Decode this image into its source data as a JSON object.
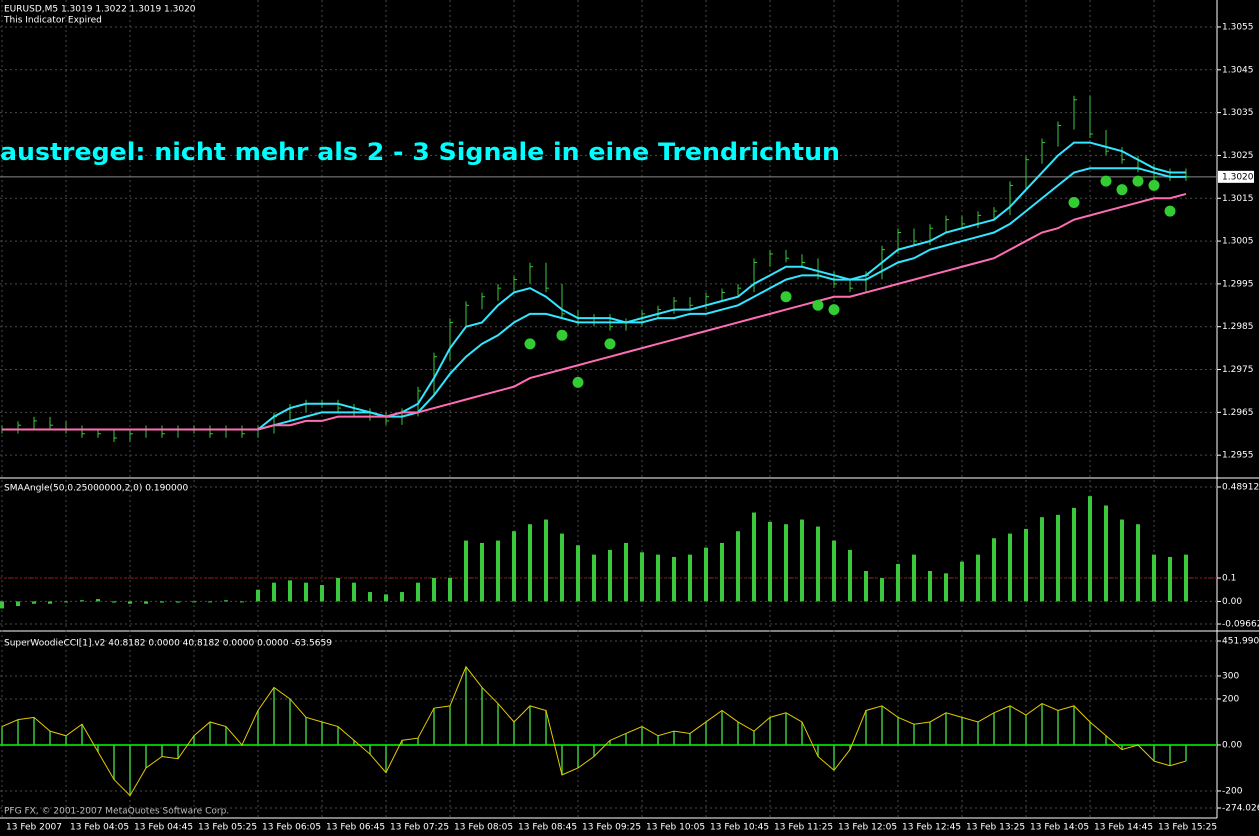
{
  "chart_data": [
    {
      "type": "price",
      "title": "EURUSD,M5  1.3019 1.3022 1.3019 1.3020",
      "subtitle": "This Indicator Expired",
      "annotation": "austregel:  nicht mehr als 2 - 3 Signale in eine Trendrichtun",
      "categories": [
        "13 Feb 2007",
        null,
        null,
        null,
        "13 Feb 04:05",
        null,
        null,
        null,
        "13 Feb 04:45",
        null,
        null,
        null,
        "13 Feb 05:25",
        null,
        null,
        null,
        "13 Feb 06:05",
        null,
        null,
        null,
        "13 Feb 06:45",
        null,
        null,
        null,
        "13 Feb 07:25",
        null,
        null,
        null,
        "13 Feb 08:05",
        null,
        null,
        null,
        "13 Feb 08:45",
        null,
        null,
        null,
        "13 Feb 09:25",
        null,
        null,
        null,
        "13 Feb 10:05",
        null,
        null,
        null,
        "13 Feb 10:45",
        null,
        null,
        null,
        "13 Feb 11:25",
        null,
        null,
        null,
        "13 Feb 12:05",
        null,
        null,
        null,
        "13 Feb 12:45",
        null,
        null,
        null,
        "13 Feb 13:25",
        null,
        null,
        null,
        "13 Feb 14:05",
        null,
        null,
        null,
        "13 Feb 14:45",
        null,
        null,
        null,
        "13 Feb 15:25",
        null,
        null
      ],
      "series": [
        {
          "style": "close",
          "color": "#3cc83c",
          "values": [
            1.2961,
            1.2962,
            1.2963,
            1.2962,
            1.2961,
            1.296,
            1.296,
            1.2959,
            1.296,
            1.2961,
            1.296,
            1.2961,
            1.2961,
            1.296,
            1.2961,
            1.296,
            1.2961,
            1.2964,
            1.2966,
            1.2967,
            1.2967,
            1.2966,
            1.2965,
            1.2964,
            1.2963,
            1.2965,
            1.297,
            1.2978,
            1.2986,
            1.299,
            1.2992,
            1.2994,
            1.2996,
            1.2999,
            1.2994,
            1.2988,
            1.2986,
            1.2987,
            1.2985,
            1.2986,
            1.2988,
            1.2989,
            1.2991,
            1.299,
            1.2992,
            1.2993,
            1.2994,
            1.3,
            1.3002,
            1.3001,
            1.3,
            1.2997,
            1.2995,
            1.2994,
            1.2997,
            1.3003,
            1.3007,
            1.3005,
            1.3008,
            1.301,
            1.3009,
            1.3011,
            1.3012,
            1.3018,
            1.3024,
            1.3028,
            1.3032,
            1.3038,
            1.303,
            1.3026,
            1.3024,
            1.3022,
            1.302,
            1.3021,
            1.302
          ]
        },
        {
          "style": "line",
          "color": "#33e6ff",
          "values": [
            1.2961,
            1.2961,
            1.2961,
            1.2961,
            1.2961,
            1.2961,
            1.2961,
            1.2961,
            1.2961,
            1.2961,
            1.2961,
            1.2961,
            1.2961,
            1.2961,
            1.2961,
            1.2961,
            1.2961,
            1.2964,
            1.2966,
            1.2967,
            1.2967,
            1.2967,
            1.2966,
            1.2965,
            1.2964,
            1.2965,
            1.2967,
            1.2973,
            1.298,
            1.2985,
            1.2986,
            1.299,
            1.2993,
            1.2994,
            1.2992,
            1.2989,
            1.2987,
            1.2987,
            1.2987,
            1.2986,
            1.2987,
            1.2988,
            1.2989,
            1.2989,
            1.299,
            1.2991,
            1.2992,
            1.2995,
            1.2997,
            1.2999,
            1.2999,
            1.2998,
            1.2997,
            1.2996,
            1.2997,
            1.3,
            1.3003,
            1.3004,
            1.3005,
            1.3007,
            1.3008,
            1.3009,
            1.301,
            1.3013,
            1.3017,
            1.3021,
            1.3025,
            1.3028,
            1.3028,
            1.3027,
            1.3026,
            1.3024,
            1.3022,
            1.3021,
            1.3021
          ]
        },
        {
          "style": "line",
          "color": "#33e6ff",
          "values": [
            1.2961,
            1.2961,
            1.2961,
            1.2961,
            1.2961,
            1.2961,
            1.2961,
            1.2961,
            1.2961,
            1.2961,
            1.2961,
            1.2961,
            1.2961,
            1.2961,
            1.2961,
            1.2961,
            1.2961,
            1.2962,
            1.2963,
            1.2964,
            1.2965,
            1.2965,
            1.2965,
            1.2965,
            1.2964,
            1.2964,
            1.2965,
            1.2969,
            1.2974,
            1.2978,
            1.2981,
            1.2983,
            1.2986,
            1.2988,
            1.2988,
            1.2987,
            1.2986,
            1.2986,
            1.2986,
            1.2986,
            1.2986,
            1.2987,
            1.2987,
            1.2988,
            1.2988,
            1.2989,
            1.299,
            1.2992,
            1.2994,
            1.2996,
            1.2997,
            1.2997,
            1.2996,
            1.2996,
            1.2996,
            1.2998,
            1.3,
            1.3001,
            1.3003,
            1.3004,
            1.3005,
            1.3006,
            1.3007,
            1.3009,
            1.3012,
            1.3015,
            1.3018,
            1.3021,
            1.3022,
            1.3022,
            1.3022,
            1.3022,
            1.3021,
            1.302,
            1.302
          ]
        },
        {
          "style": "line",
          "color": "#ff6eb4",
          "values": [
            1.2961,
            1.2961,
            1.2961,
            1.2961,
            1.2961,
            1.2961,
            1.2961,
            1.2961,
            1.2961,
            1.2961,
            1.2961,
            1.2961,
            1.2961,
            1.2961,
            1.2961,
            1.2961,
            1.2961,
            1.2962,
            1.2962,
            1.2963,
            1.2963,
            1.2964,
            1.2964,
            1.2964,
            1.2964,
            1.2965,
            1.2965,
            1.2966,
            1.2967,
            1.2968,
            1.2969,
            1.297,
            1.2971,
            1.2973,
            1.2974,
            1.2975,
            1.2976,
            1.2977,
            1.2978,
            1.2979,
            1.298,
            1.2981,
            1.2982,
            1.2983,
            1.2984,
            1.2985,
            1.2986,
            1.2987,
            1.2988,
            1.2989,
            1.299,
            1.2991,
            1.2992,
            1.2992,
            1.2993,
            1.2994,
            1.2995,
            1.2996,
            1.2997,
            1.2998,
            1.2999,
            1.3,
            1.3001,
            1.3003,
            1.3005,
            1.3007,
            1.3008,
            1.301,
            1.3011,
            1.3012,
            1.3013,
            1.3014,
            1.3015,
            1.3015,
            1.3016
          ]
        },
        {
          "style": "dot",
          "color": "#33cc33",
          "values": [
            null,
            null,
            null,
            null,
            null,
            null,
            null,
            null,
            null,
            null,
            null,
            null,
            null,
            null,
            null,
            null,
            null,
            null,
            null,
            null,
            null,
            null,
            null,
            null,
            null,
            null,
            null,
            null,
            null,
            null,
            null,
            null,
            null,
            1.2981,
            null,
            1.2983,
            1.2972,
            null,
            1.2981,
            null,
            null,
            null,
            null,
            null,
            null,
            null,
            null,
            null,
            null,
            1.2992,
            null,
            1.299,
            1.2989,
            null,
            null,
            null,
            null,
            null,
            null,
            null,
            null,
            null,
            null,
            null,
            null,
            null,
            null,
            1.3014,
            null,
            1.3019,
            1.3017,
            1.3019,
            1.3018,
            1.3012,
            null
          ]
        }
      ],
      "ylim": [
        1.29499,
        1.30613
      ],
      "yticks": [
        1.2955,
        1.2965,
        1.2975,
        1.2985,
        1.2995,
        1.3005,
        1.3015,
        1.3025,
        1.3035,
        1.3045,
        1.3055
      ],
      "current_price": {
        "value": 1.302,
        "label": "1.3020"
      },
      "grid": true
    },
    {
      "type": "histogram",
      "title": "SMAAngle(50,0.25000000,2,0) 0.190000",
      "series": [
        {
          "color": "#3cc83c",
          "values": [
            -0.03,
            -0.02,
            -0.01,
            -0.01,
            0.0,
            0.005,
            0.01,
            -0.005,
            -0.01,
            -0.01,
            -0.005,
            -0.005,
            0.0,
            0.0,
            0.005,
            0.0,
            0.05,
            0.08,
            0.09,
            0.08,
            0.07,
            0.1,
            0.08,
            0.04,
            0.03,
            0.04,
            0.08,
            0.1,
            0.1,
            0.26,
            0.25,
            0.26,
            0.3,
            0.33,
            0.35,
            0.29,
            0.24,
            0.2,
            0.22,
            0.25,
            0.21,
            0.2,
            0.19,
            0.2,
            0.23,
            0.25,
            0.3,
            0.38,
            0.34,
            0.33,
            0.35,
            0.32,
            0.26,
            0.22,
            0.13,
            0.1,
            0.16,
            0.2,
            0.13,
            0.12,
            0.17,
            0.2,
            0.27,
            0.29,
            0.31,
            0.36,
            0.37,
            0.4,
            0.45,
            0.41,
            0.35,
            0.33,
            0.2,
            0.19,
            0.2
          ]
        }
      ],
      "reference_line": 0.1,
      "ylim": [
        -0.096625,
        0.489125
      ],
      "yticks": [
        -0.096625,
        {
          "value": 0,
          "label": "0.00"
        },
        0.1,
        0.489125
      ],
      "grid": true
    },
    {
      "type": "cci",
      "title": "SuperWoodieCCI[1].v2 40.8182 0.0000 40.8182 0.0000 0.0000 -63.5659",
      "series": [
        {
          "style": "bars",
          "color": "#3cc83c",
          "values": [
            80,
            110,
            120,
            60,
            40,
            90,
            -30,
            -150,
            -220,
            -100,
            -50,
            -60,
            40,
            100,
            80,
            0,
            150,
            250,
            200,
            120,
            100,
            80,
            20,
            -40,
            -120,
            20,
            30,
            160,
            170,
            340,
            250,
            180,
            100,
            170,
            150,
            -130,
            -100,
            -50,
            20,
            50,
            80,
            40,
            60,
            50,
            100,
            150,
            100,
            60,
            120,
            140,
            100,
            -50,
            -110,
            -20,
            150,
            170,
            120,
            90,
            100,
            140,
            120,
            100,
            140,
            170,
            130,
            180,
            150,
            170,
            100,
            40,
            -20,
            0,
            -70,
            -90,
            -70
          ]
        },
        {
          "style": "line",
          "color": "#e6c800",
          "values": [
            80,
            110,
            120,
            60,
            40,
            90,
            -30,
            -150,
            -220,
            -100,
            -50,
            -60,
            40,
            100,
            80,
            0,
            150,
            250,
            200,
            120,
            100,
            80,
            20,
            -40,
            -120,
            20,
            30,
            160,
            170,
            340,
            250,
            180,
            100,
            170,
            150,
            -130,
            -100,
            -50,
            20,
            50,
            80,
            40,
            60,
            50,
            100,
            150,
            100,
            60,
            120,
            140,
            100,
            -50,
            -110,
            -20,
            150,
            170,
            120,
            90,
            100,
            140,
            120,
            100,
            140,
            170,
            130,
            180,
            150,
            170,
            100,
            40,
            -20,
            0,
            -70,
            -90,
            -70
          ]
        }
      ],
      "ylim": [
        -274.0264,
        451.9901
      ],
      "yticks": [
        -274.0264,
        -200,
        {
          "value": 0,
          "label": "0.00"
        },
        200,
        300,
        451.9901
      ],
      "grid": true
    }
  ],
  "footer": "PFG FX, © 2001-2007 MetaQuotes Software Corp."
}
